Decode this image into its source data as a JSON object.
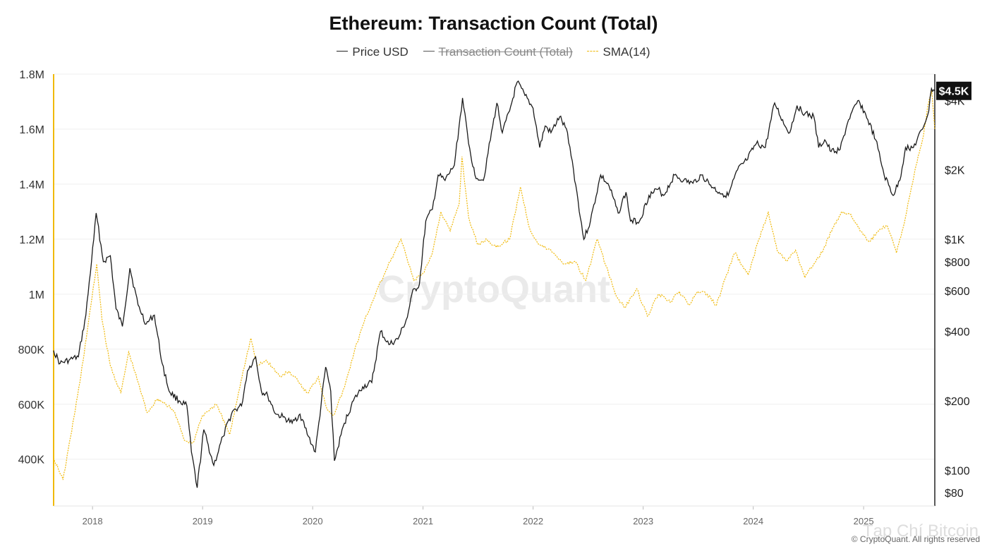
{
  "chart_data": {
    "type": "line",
    "title": "Ethereum: Transaction Count (Total)",
    "legend": [
      {
        "name": "Price USD",
        "color": "#222222",
        "style": "solid",
        "hidden": false
      },
      {
        "name": "Transaction Count (Total)",
        "color": "#555555",
        "style": "solid",
        "hidden": true
      },
      {
        "name": "SMA(14)",
        "color": "#f0b90b",
        "style": "dashed",
        "hidden": false
      }
    ],
    "legend_placement": "top-center",
    "left_axis": {
      "ticks": [
        "1.8M",
        "1.6M",
        "1.4M",
        "1.2M",
        "1M",
        "800K",
        "600K",
        "400K"
      ],
      "tick_values": [
        1800000,
        1600000,
        1400000,
        1200000,
        1000000,
        800000,
        600000,
        400000
      ],
      "range": [
        230000,
        1800000
      ]
    },
    "right_axis": {
      "scale": "log",
      "ticks": [
        "$4K",
        "$2K",
        "$1K",
        "$800",
        "$600",
        "$400",
        "$200",
        "$100",
        "$80"
      ],
      "tick_values": [
        4000,
        2000,
        1000,
        800,
        600,
        400,
        200,
        100,
        80
      ],
      "range": [
        70,
        5200
      ]
    },
    "x_axis": {
      "ticks": [
        "2018",
        "2019",
        "2020",
        "2021",
        "2022",
        "2023",
        "2024",
        "2025"
      ],
      "range": [
        "2017-08-25",
        "2025-08-25"
      ]
    },
    "current_price_label": "$4.5K",
    "grid": true,
    "series": [
      {
        "name": "Price USD",
        "x": [
          "2017-08-25",
          "2017-09-15",
          "2017-10-15",
          "2017-11-15",
          "2017-12-10",
          "2018-01-05",
          "2018-01-13",
          "2018-02-06",
          "2018-03-01",
          "2018-03-20",
          "2018-04-10",
          "2018-05-05",
          "2018-06-01",
          "2018-06-28",
          "2018-07-25",
          "2018-08-20",
          "2018-09-12",
          "2018-10-15",
          "2018-11-10",
          "2018-11-25",
          "2018-12-14",
          "2019-01-05",
          "2019-02-07",
          "2019-03-10",
          "2019-04-10",
          "2019-05-10",
          "2019-05-30",
          "2019-06-26",
          "2019-07-15",
          "2019-08-05",
          "2019-09-01",
          "2019-09-25",
          "2019-10-25",
          "2019-11-20",
          "2019-12-18",
          "2020-01-10",
          "2020-02-13",
          "2020-03-01",
          "2020-03-13",
          "2020-04-15",
          "2020-05-15",
          "2020-06-15",
          "2020-07-15",
          "2020-08-13",
          "2020-09-10",
          "2020-10-10",
          "2020-11-10",
          "2020-11-25",
          "2020-12-20",
          "2021-01-10",
          "2021-02-01",
          "2021-02-20",
          "2021-03-15",
          "2021-04-15",
          "2021-05-12",
          "2021-06-01",
          "2021-06-22",
          "2021-07-20",
          "2021-08-20",
          "2021-09-03",
          "2021-09-21",
          "2021-10-15",
          "2021-11-09",
          "2021-12-05",
          "2022-01-01",
          "2022-01-23",
          "2022-02-10",
          "2022-03-01",
          "2022-03-30",
          "2022-04-25",
          "2022-05-15",
          "2022-06-18",
          "2022-07-10",
          "2022-08-13",
          "2022-09-10",
          "2022-10-10",
          "2022-11-05",
          "2022-11-20",
          "2022-12-20",
          "2023-01-20",
          "2023-02-20",
          "2023-03-10",
          "2023-04-15",
          "2023-05-15",
          "2023-06-15",
          "2023-07-13",
          "2023-08-20",
          "2023-09-10",
          "2023-10-10",
          "2023-11-10",
          "2023-12-10",
          "2024-01-11",
          "2024-02-10",
          "2024-03-12",
          "2024-04-15",
          "2024-05-01",
          "2024-05-25",
          "2024-06-20",
          "2024-07-20",
          "2024-08-05",
          "2024-08-25",
          "2024-09-15",
          "2024-10-15",
          "2024-11-12",
          "2024-12-16",
          "2025-01-15",
          "2025-02-10",
          "2025-03-10",
          "2025-04-09",
          "2025-05-01",
          "2025-05-20",
          "2025-06-15",
          "2025-07-15",
          "2025-08-05",
          "2025-08-14",
          "2025-08-25"
        ],
        "values": [
          330,
          290,
          300,
          310,
          470,
          1000,
          1300,
          800,
          850,
          500,
          420,
          750,
          520,
          430,
          470,
          290,
          220,
          200,
          190,
          120,
          84,
          150,
          105,
          140,
          180,
          190,
          270,
          310,
          220,
          210,
          175,
          170,
          160,
          175,
          140,
          120,
          280,
          220,
          110,
          160,
          200,
          230,
          240,
          400,
          350,
          370,
          460,
          580,
          640,
          1200,
          1350,
          1900,
          1800,
          2100,
          4100,
          2600,
          1900,
          1800,
          3100,
          3900,
          2900,
          3600,
          4800,
          4200,
          3700,
          2500,
          3100,
          2900,
          3400,
          2900,
          2000,
          1000,
          1200,
          1900,
          1700,
          1300,
          1600,
          1200,
          1200,
          1550,
          1650,
          1550,
          1900,
          1800,
          1750,
          1900,
          1680,
          1600,
          1550,
          2000,
          2200,
          2600,
          2500,
          3900,
          3100,
          2900,
          3800,
          3500,
          3400,
          2500,
          2700,
          2400,
          2450,
          3300,
          4000,
          3300,
          2700,
          1900,
          1550,
          1800,
          2500,
          2500,
          3000,
          3600,
          4500,
          4400
        ]
      },
      {
        "name": "SMA(14)",
        "x": [
          "2017-08-25",
          "2017-09-25",
          "2017-10-20",
          "2017-11-20",
          "2017-12-15",
          "2018-01-15",
          "2018-02-01",
          "2018-03-01",
          "2018-04-05",
          "2018-05-01",
          "2018-06-01",
          "2018-07-01",
          "2018-08-05",
          "2018-09-01",
          "2018-10-01",
          "2018-11-01",
          "2018-12-01",
          "2019-01-01",
          "2019-02-15",
          "2019-04-01",
          "2019-05-15",
          "2019-06-10",
          "2019-07-01",
          "2019-08-01",
          "2019-09-15",
          "2019-10-15",
          "2019-11-15",
          "2019-12-15",
          "2020-01-20",
          "2020-02-15",
          "2020-03-10",
          "2020-04-15",
          "2020-05-20",
          "2020-06-20",
          "2020-07-30",
          "2020-09-15",
          "2020-10-20",
          "2020-12-01",
          "2021-01-05",
          "2021-02-01",
          "2021-03-01",
          "2021-04-01",
          "2021-05-01",
          "2021-05-10",
          "2021-06-01",
          "2021-07-01",
          "2021-08-01",
          "2021-09-01",
          "2021-10-15",
          "2021-11-20",
          "2021-12-20",
          "2022-01-20",
          "2022-03-01",
          "2022-04-15",
          "2022-05-20",
          "2022-06-25",
          "2022-08-01",
          "2022-09-01",
          "2022-10-01",
          "2022-11-01",
          "2022-12-10",
          "2023-01-15",
          "2023-02-20",
          "2023-04-01",
          "2023-05-01",
          "2023-06-01",
          "2023-07-01",
          "2023-08-01",
          "2023-09-01",
          "2023-10-01",
          "2023-11-01",
          "2023-12-15",
          "2024-01-20",
          "2024-02-20",
          "2024-03-20",
          "2024-04-20",
          "2024-05-20",
          "2024-06-20",
          "2024-07-20",
          "2024-08-20",
          "2024-09-20",
          "2024-10-20",
          "2024-11-20",
          "2024-12-20",
          "2025-01-20",
          "2025-02-20",
          "2025-03-20",
          "2025-04-20",
          "2025-05-20",
          "2025-06-20",
          "2025-07-15",
          "2025-08-05",
          "2025-08-15",
          "2025-08-25"
        ],
        "values": [
          405000,
          325000,
          480000,
          680000,
          870000,
          1110000,
          910000,
          740000,
          640000,
          790000,
          680000,
          570000,
          620000,
          600000,
          570000,
          470000,
          460000,
          560000,
          600000,
          490000,
          720000,
          840000,
          740000,
          760000,
          700000,
          720000,
          680000,
          640000,
          700000,
          590000,
          560000,
          660000,
          800000,
          900000,
          1010000,
          1120000,
          1200000,
          1050000,
          1080000,
          1150000,
          1300000,
          1230000,
          1330000,
          1500000,
          1280000,
          1180000,
          1200000,
          1170000,
          1200000,
          1390000,
          1240000,
          1180000,
          1160000,
          1110000,
          1120000,
          1050000,
          1200000,
          1100000,
          1000000,
          950000,
          1020000,
          920000,
          1000000,
          970000,
          1010000,
          960000,
          1010000,
          1000000,
          960000,
          1060000,
          1150000,
          1070000,
          1200000,
          1300000,
          1160000,
          1120000,
          1160000,
          1060000,
          1110000,
          1160000,
          1240000,
          1300000,
          1290000,
          1230000,
          1190000,
          1230000,
          1250000,
          1150000,
          1280000,
          1450000,
          1560000,
          1700000,
          1740000,
          1600000
        ]
      }
    ]
  },
  "footer": "© CryptoQuant. All rights reserved",
  "watermark": "CryptoQuant",
  "corner_watermark": "Tạp Chí Bitcoin"
}
